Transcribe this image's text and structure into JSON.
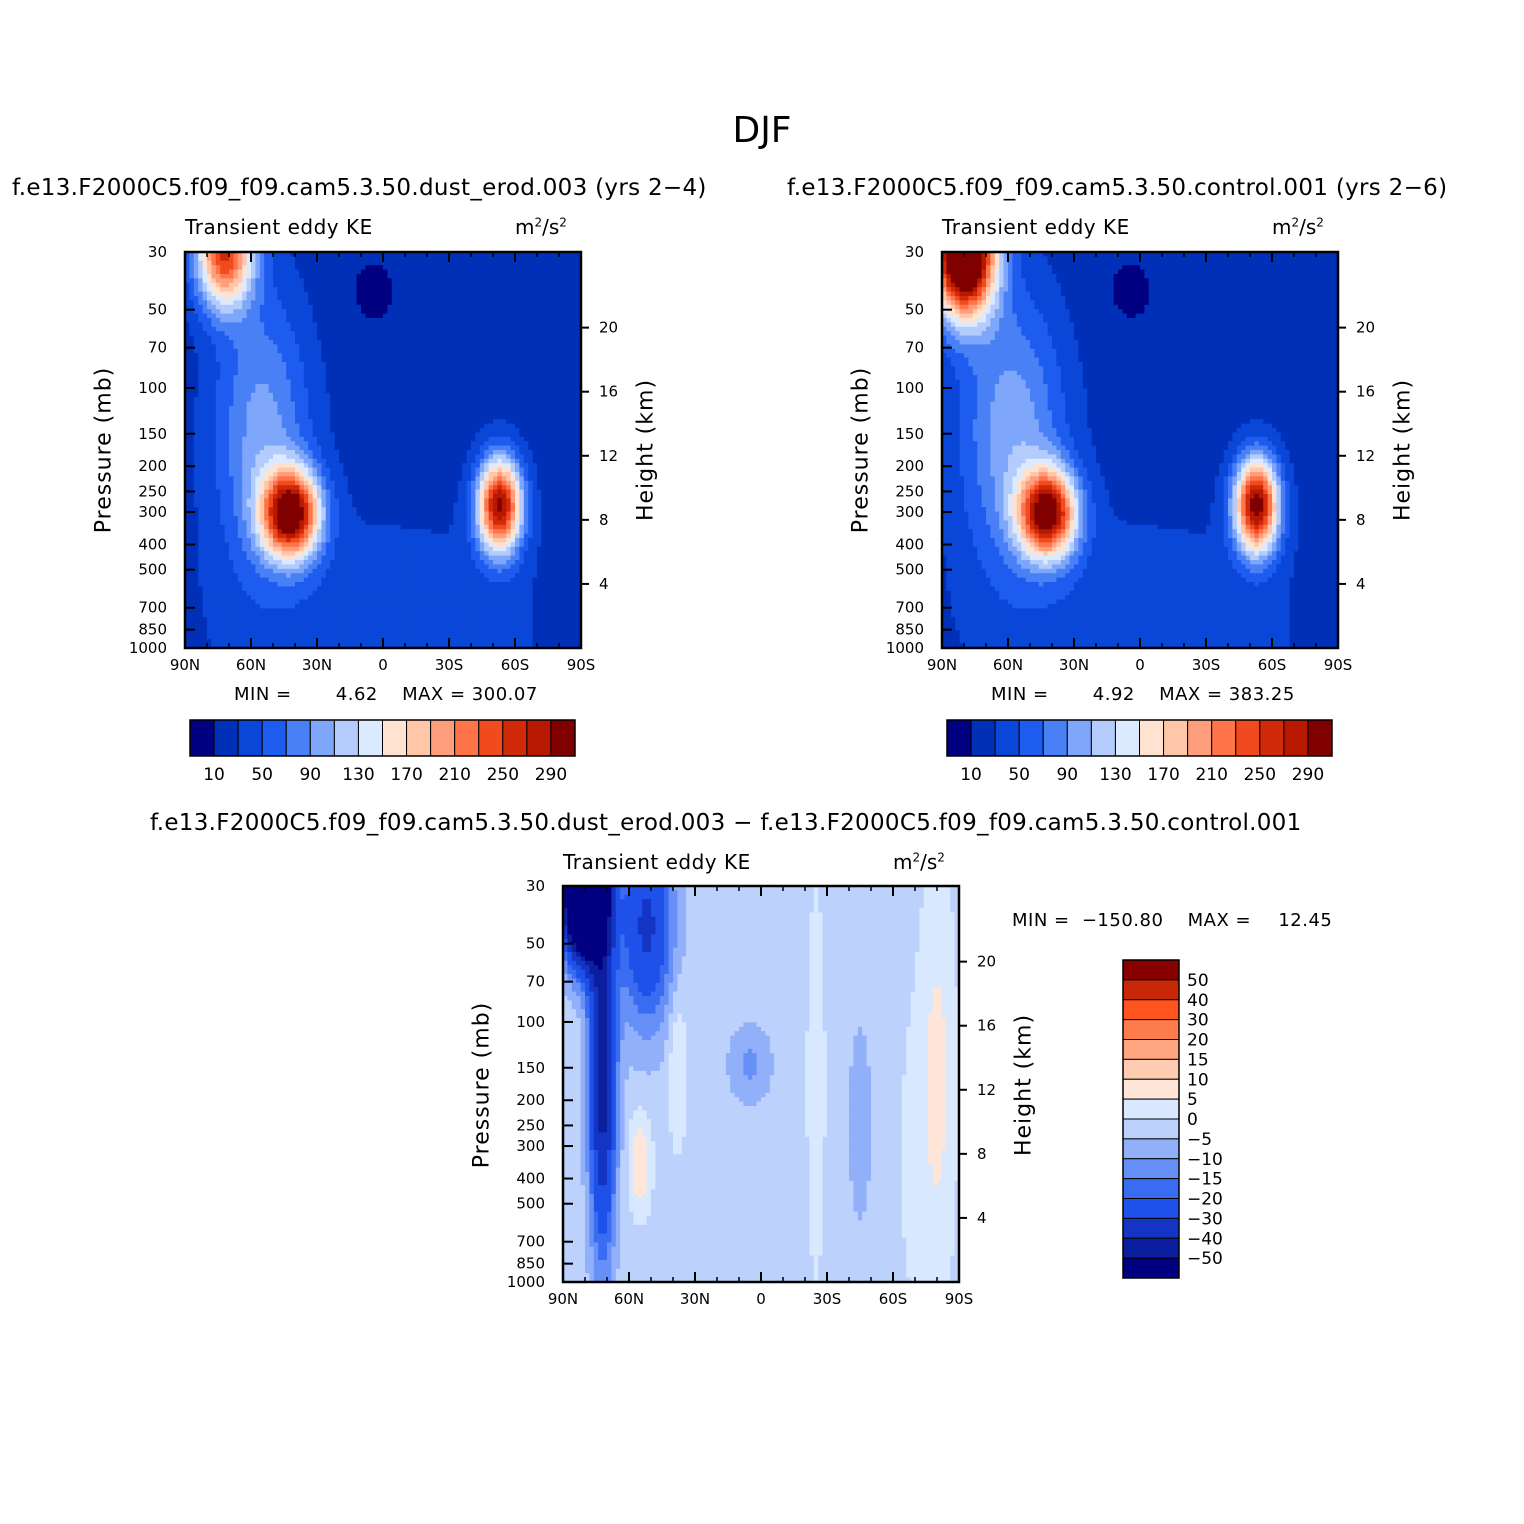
{
  "figure": {
    "title": "DJF"
  },
  "colors": {
    "abs_levels": [
      "#000080",
      "#0030b8",
      "#0a46d8",
      "#1e5cf0",
      "#4a80f6",
      "#7ea6fa",
      "#b4ccfc",
      "#dceaff",
      "#ffe2d0",
      "#ffc6a8",
      "#ff9e7c",
      "#ff7448",
      "#f04a1e",
      "#d02a0a",
      "#b81800",
      "#800000"
    ],
    "diff_levels": [
      "#000080",
      "#0a1e9e",
      "#1434c4",
      "#1e50ea",
      "#3a6cf2",
      "#6690f8",
      "#92b0fa",
      "#bcd2fc",
      "#d8e8fe",
      "#ffe6d8",
      "#ffccb2",
      "#ffa680",
      "#ff7c4c",
      "#ff5420",
      "#c82808",
      "#880000"
    ]
  },
  "chart_data": [
    {
      "type": "heatmap",
      "title": "f.e13.F2000C5.f09_f09.cam5.3.50.dust_erod.003 (yrs 2−4)",
      "panel_label": "Transient eddy KE",
      "units": "m²/s²",
      "xlabel": "",
      "ylabel": "Pressure (mb)",
      "ylabel_right": "Height (km)",
      "x_ticks": [
        "90N",
        "60N",
        "30N",
        "0",
        "30S",
        "60S",
        "90S"
      ],
      "y_ticks": [
        "30",
        "50",
        "70",
        "100",
        "150",
        "200",
        "250",
        "300",
        "400",
        "500",
        "700",
        "850",
        "1000"
      ],
      "y_ticks_right": [
        "20",
        "16",
        "12",
        "8",
        "4"
      ],
      "min_label": "MIN =",
      "min_value": "4.62",
      "max_label": "MAX =",
      "max_value": "300.07",
      "colorbar_labels": [
        "10",
        "50",
        "90",
        "130",
        "170",
        "210",
        "250",
        "290"
      ],
      "contour_levels": [
        10,
        30,
        50,
        70,
        90,
        110,
        130,
        150,
        170,
        190,
        210,
        230,
        250,
        270,
        290
      ],
      "features": [
        {
          "lat": 42,
          "p": 260,
          "peak": 300.07
        },
        {
          "lat": -52,
          "p": 250,
          "peak": 292
        },
        {
          "lat": 70,
          "p": 30,
          "peak": 230
        }
      ]
    },
    {
      "type": "heatmap",
      "title": "f.e13.F2000C5.f09_f09.cam5.3.50.control.001 (yrs 2−6)",
      "panel_label": "Transient eddy KE",
      "units": "m²/s²",
      "xlabel": "",
      "ylabel": "Pressure (mb)",
      "ylabel_right": "Height (km)",
      "x_ticks": [
        "90N",
        "60N",
        "30N",
        "0",
        "30S",
        "60S",
        "90S"
      ],
      "y_ticks": [
        "30",
        "50",
        "70",
        "100",
        "150",
        "200",
        "250",
        "300",
        "400",
        "500",
        "700",
        "850",
        "1000"
      ],
      "y_ticks_right": [
        "20",
        "16",
        "12",
        "8",
        "4"
      ],
      "min_label": "MIN =",
      "min_value": "4.92",
      "max_label": "MAX =",
      "max_value": "383.25",
      "colorbar_labels": [
        "10",
        "50",
        "90",
        "130",
        "170",
        "210",
        "250",
        "290"
      ],
      "contour_levels": [
        10,
        30,
        50,
        70,
        90,
        110,
        130,
        150,
        170,
        190,
        210,
        230,
        250,
        270,
        290
      ],
      "features": [
        {
          "lat": 42,
          "p": 260,
          "peak": 285
        },
        {
          "lat": -52,
          "p": 250,
          "peak": 300
        },
        {
          "lat": 80,
          "p": 30,
          "peak": 383.25
        }
      ]
    },
    {
      "type": "heatmap",
      "title": "f.e13.F2000C5.f09_f09.cam5.3.50.dust_erod.003 − f.e13.F2000C5.f09_f09.cam5.3.50.control.001",
      "panel_label": "Transient eddy KE",
      "units": "m²/s²",
      "xlabel": "",
      "ylabel": "Pressure (mb)",
      "ylabel_right": "Height (km)",
      "x_ticks": [
        "90N",
        "60N",
        "30N",
        "0",
        "30S",
        "60S",
        "90S"
      ],
      "y_ticks": [
        "30",
        "50",
        "70",
        "100",
        "150",
        "200",
        "250",
        "300",
        "400",
        "500",
        "700",
        "850",
        "1000"
      ],
      "y_ticks_right": [
        "20",
        "16",
        "12",
        "8",
        "4"
      ],
      "min_label": "MIN =",
      "min_value": "−150.80",
      "max_label": "MAX =",
      "max_value": "12.45",
      "colorbar_labels": [
        "50",
        "40",
        "30",
        "20",
        "15",
        "10",
        "5",
        "0",
        "−5",
        "−10",
        "−15",
        "−20",
        "−30",
        "−40",
        "−50"
      ],
      "contour_levels": [
        -50,
        -40,
        -30,
        -20,
        -15,
        -10,
        -5,
        0,
        5,
        10,
        15,
        20,
        30,
        40,
        50
      ],
      "features": [
        {
          "lat": 78,
          "p": 30,
          "peak": -150.8
        },
        {
          "lat": 55,
          "p": 270,
          "peak": 12.45
        },
        {
          "lat": -80,
          "p": 200,
          "peak": 8
        }
      ]
    }
  ]
}
